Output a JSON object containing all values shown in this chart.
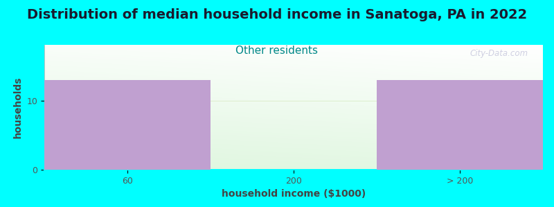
{
  "title": "Distribution of median household income in Sanatoga, PA in 2022",
  "subtitle": "Other residents",
  "xlabel": "household income ($1000)",
  "ylabel": "households",
  "background_color": "#00FFFF",
  "bar_color": "#c0a0d0",
  "bar_edge_color": "#c0a0d0",
  "title_color": "#1a1a2e",
  "subtitle_color": "#008888",
  "axis_label_color": "#444444",
  "tick_color": "#555555",
  "watermark": "City-Data.com",
  "categories": [
    "60",
    "200",
    "> 200"
  ],
  "values": [
    13,
    0,
    13
  ],
  "ylim": [
    0,
    18
  ],
  "yticks": [
    0,
    10
  ],
  "grid_color": "#ddeecc",
  "title_fontsize": 14,
  "subtitle_fontsize": 11,
  "label_fontsize": 10,
  "tick_fontsize": 9
}
